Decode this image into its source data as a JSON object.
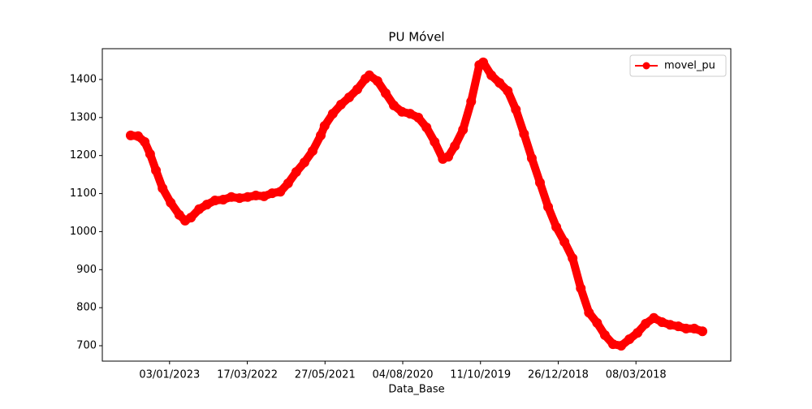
{
  "chart_data": {
    "type": "line",
    "title": "PU Móvel",
    "xlabel": "Data_Base",
    "x": [
      0,
      19,
      36,
      50,
      65,
      82,
      103,
      125,
      140,
      155,
      176,
      196,
      217,
      238,
      259,
      280,
      301,
      322,
      343,
      364,
      385,
      405,
      426,
      447,
      468,
      489,
      499,
      520,
      541,
      562,
      583,
      604,
      614,
      635,
      656,
      677,
      698,
      719,
      740,
      761,
      782,
      803,
      817,
      834,
      855,
      876,
      897,
      907,
      928,
      949,
      970,
      991,
      1012,
      1032,
      1053,
      1074,
      1095,
      1116,
      1137,
      1158,
      1179,
      1200,
      1220,
      1241,
      1262,
      1283,
      1304,
      1325,
      1346,
      1367,
      1388,
      1409,
      1429,
      1450,
      1471
    ],
    "series": [
      {
        "name": "movel_pu",
        "color": "#ff0000",
        "values": [
          1253,
          1251,
          1236,
          1204,
          1161,
          1114,
          1076,
          1044,
          1029,
          1037,
          1059,
          1071,
          1082,
          1084,
          1091,
          1088,
          1091,
          1095,
          1093,
          1101,
          1105,
          1127,
          1157,
          1182,
          1212,
          1253,
          1278,
          1310,
          1334,
          1353,
          1374,
          1402,
          1411,
          1396,
          1364,
          1332,
          1315,
          1310,
          1300,
          1274,
          1236,
          1191,
          1197,
          1225,
          1268,
          1342,
          1438,
          1445,
          1411,
          1391,
          1370,
          1321,
          1257,
          1193,
          1129,
          1065,
          1012,
          973,
          930,
          851,
          787,
          760,
          728,
          704,
          700,
          717,
          734,
          758,
          773,
          762,
          755,
          751,
          745,
          745,
          738
        ]
      }
    ],
    "xlim": [
      -73,
      1544
    ],
    "ylim": [
      659.5,
      1481
    ],
    "xticks": [
      {
        "value": 100,
        "label": "03/01/2023"
      },
      {
        "value": 300,
        "label": "17/03/2022"
      },
      {
        "value": 500,
        "label": "27/05/2021"
      },
      {
        "value": 700,
        "label": "04/08/2020"
      },
      {
        "value": 900,
        "label": "11/10/2019"
      },
      {
        "value": 1100,
        "label": "26/12/2018"
      },
      {
        "value": 1300,
        "label": "08/03/2018"
      }
    ],
    "yticks": [
      700,
      800,
      900,
      1000,
      1100,
      1200,
      1300,
      1400
    ],
    "legend": "upper right"
  }
}
